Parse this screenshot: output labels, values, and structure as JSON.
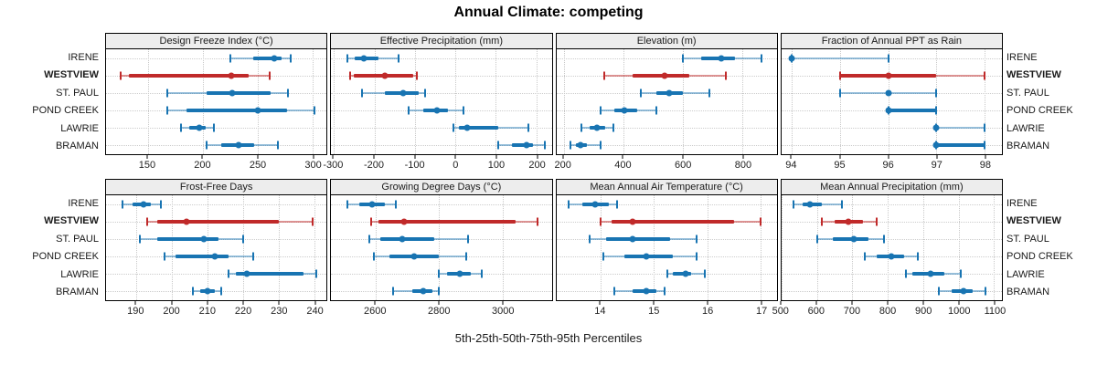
{
  "title": "Annual Climate: competing",
  "caption": "5th-25th-50th-75th-95th Percentiles",
  "sites": [
    "IRENE",
    "WESTVIEW",
    "ST. PAUL",
    "POND CREEK",
    "LAWRIE",
    "BRAMAN"
  ],
  "highlight_site": "WESTVIEW",
  "colors": {
    "normal_solid": "#1874b2",
    "normal_faint": "rgba(24,116,178,0.45)",
    "highlight_solid": "#c02a2a",
    "highlight_faint": "rgba(192,42,42,0.5)",
    "strip_bg": "#ededed",
    "grid": "#c9c9c9"
  },
  "chart_data": [
    {
      "type": "errorbar",
      "panel": "Design Freeze Index (°C)",
      "row": 0,
      "xlim": [
        112,
        313
      ],
      "ticks": [
        150,
        200,
        250,
        300
      ],
      "percentile_labels": [
        "p5",
        "p25",
        "p50",
        "p75",
        "p95"
      ],
      "series": [
        {
          "site": "IRENE",
          "values": [
            225,
            246,
            265,
            272,
            280
          ]
        },
        {
          "site": "WESTVIEW",
          "values": [
            125,
            133,
            226,
            242,
            261
          ]
        },
        {
          "site": "ST. PAUL",
          "values": [
            168,
            204,
            227,
            262,
            278
          ]
        },
        {
          "site": "POND CREEK",
          "values": [
            168,
            185,
            250,
            277,
            302
          ]
        },
        {
          "site": "LAWRIE",
          "values": [
            180,
            188,
            197,
            203,
            210
          ]
        },
        {
          "site": "BRAMAN",
          "values": [
            204,
            217,
            233,
            247,
            269
          ]
        }
      ]
    },
    {
      "type": "errorbar",
      "panel": "Effective Precipitation (mm)",
      "row": 0,
      "xlim": [
        -307,
        238
      ],
      "ticks": [
        -300,
        -200,
        -100,
        0,
        100,
        200
      ],
      "series": [
        {
          "site": "IRENE",
          "values": [
            -267,
            -248,
            -226,
            -189,
            -141
          ]
        },
        {
          "site": "WESTVIEW",
          "values": [
            -260,
            -252,
            -175,
            -105,
            -96
          ]
        },
        {
          "site": "ST. PAUL",
          "values": [
            -230,
            -175,
            -128,
            -90,
            -74
          ]
        },
        {
          "site": "POND CREEK",
          "values": [
            -115,
            -80,
            -45,
            -18,
            20
          ]
        },
        {
          "site": "LAWRIE",
          "values": [
            -5,
            8,
            30,
            105,
            180
          ]
        },
        {
          "site": "BRAMAN",
          "values": [
            105,
            140,
            176,
            192,
            222
          ]
        }
      ]
    },
    {
      "type": "errorbar",
      "panel": "Elevation (m)",
      "row": 0,
      "xlim": [
        175,
        915
      ],
      "ticks": [
        200,
        400,
        600,
        800
      ],
      "series": [
        {
          "site": "IRENE",
          "values": [
            600,
            660,
            730,
            775,
            865
          ]
        },
        {
          "site": "WESTVIEW",
          "values": [
            335,
            430,
            540,
            620,
            745
          ]
        },
        {
          "site": "ST. PAUL",
          "values": [
            460,
            510,
            555,
            600,
            690
          ]
        },
        {
          "site": "POND CREEK",
          "values": [
            325,
            370,
            405,
            445,
            510
          ]
        },
        {
          "site": "LAWRIE",
          "values": [
            258,
            288,
            312,
            338,
            368
          ]
        },
        {
          "site": "BRAMAN",
          "values": [
            223,
            240,
            256,
            278,
            324
          ]
        }
      ]
    },
    {
      "type": "errorbar",
      "panel": "Fraction of Annual PPT as Rain",
      "row": 0,
      "xlim": [
        93.78,
        98.36
      ],
      "ticks": [
        94,
        95,
        96,
        97,
        98
      ],
      "series": [
        {
          "site": "IRENE",
          "values": [
            94,
            94,
            94,
            94,
            96
          ]
        },
        {
          "site": "WESTVIEW",
          "values": [
            95,
            95,
            96,
            97,
            98
          ]
        },
        {
          "site": "ST. PAUL",
          "values": [
            95,
            96,
            96,
            96,
            97
          ]
        },
        {
          "site": "POND CREEK",
          "values": [
            96,
            96,
            96,
            97,
            97
          ]
        },
        {
          "site": "LAWRIE",
          "values": [
            97,
            97,
            97,
            97,
            98
          ]
        },
        {
          "site": "BRAMAN",
          "values": [
            97,
            97,
            97,
            98,
            98
          ]
        }
      ]
    },
    {
      "type": "errorbar",
      "panel": "Frost-Free Days",
      "row": 1,
      "xlim": [
        181.5,
        243.5
      ],
      "ticks": [
        190,
        200,
        210,
        220,
        230,
        240
      ],
      "series": [
        {
          "site": "IRENE",
          "values": [
            186,
            189,
            192,
            194,
            197
          ]
        },
        {
          "site": "WESTVIEW",
          "values": [
            193,
            196,
            204,
            230,
            239.5
          ]
        },
        {
          "site": "ST. PAUL",
          "values": [
            191,
            196,
            209,
            213,
            220
          ]
        },
        {
          "site": "POND CREEK",
          "values": [
            198,
            201,
            212,
            216,
            223
          ]
        },
        {
          "site": "LAWRIE",
          "values": [
            216,
            218,
            221,
            237,
            240.5
          ]
        },
        {
          "site": "BRAMAN",
          "values": [
            206,
            208,
            210,
            212,
            214
          ]
        }
      ]
    },
    {
      "type": "errorbar",
      "panel": "Growing Degree Days (°C)",
      "row": 1,
      "xlim": [
        2460,
        3155
      ],
      "ticks": [
        2600,
        2800,
        3000
      ],
      "series": [
        {
          "site": "IRENE",
          "values": [
            2510,
            2550,
            2590,
            2630,
            2665
          ]
        },
        {
          "site": "WESTVIEW",
          "values": [
            2585,
            2610,
            2690,
            3040,
            3110
          ]
        },
        {
          "site": "ST. PAUL",
          "values": [
            2580,
            2615,
            2685,
            2785,
            2890
          ]
        },
        {
          "site": "POND CREEK",
          "values": [
            2595,
            2645,
            2720,
            2800,
            2885
          ]
        },
        {
          "site": "LAWRIE",
          "values": [
            2800,
            2825,
            2865,
            2900,
            2935
          ]
        },
        {
          "site": "BRAMAN",
          "values": [
            2655,
            2715,
            2750,
            2780,
            2800
          ]
        }
      ]
    },
    {
      "type": "errorbar",
      "panel": "Mean Annual Air Temperature (°C)",
      "row": 1,
      "xlim": [
        13.17,
        17.3
      ],
      "ticks": [
        14,
        15,
        16,
        17
      ],
      "series": [
        {
          "site": "IRENE",
          "values": [
            13.4,
            13.65,
            13.9,
            14.15,
            14.3
          ]
        },
        {
          "site": "WESTVIEW",
          "values": [
            14.0,
            14.2,
            14.6,
            16.5,
            17.0
          ]
        },
        {
          "site": "ST. PAUL",
          "values": [
            13.8,
            14.1,
            14.6,
            15.3,
            15.8
          ]
        },
        {
          "site": "POND CREEK",
          "values": [
            14.05,
            14.45,
            14.85,
            15.35,
            15.8
          ]
        },
        {
          "site": "LAWRIE",
          "values": [
            15.25,
            15.35,
            15.6,
            15.7,
            15.95
          ]
        },
        {
          "site": "BRAMAN",
          "values": [
            14.25,
            14.6,
            14.85,
            15.05,
            15.2
          ]
        }
      ]
    },
    {
      "type": "errorbar",
      "panel": "Mean Annual Precipitation (mm)",
      "row": 1,
      "xlim": [
        500,
        1122
      ],
      "ticks": [
        500,
        600,
        700,
        800,
        900,
        1000,
        1100
      ],
      "series": [
        {
          "site": "IRENE",
          "values": [
            535,
            560,
            580,
            615,
            670
          ]
        },
        {
          "site": "WESTVIEW",
          "values": [
            615,
            650,
            690,
            730,
            770
          ]
        },
        {
          "site": "ST. PAUL",
          "values": [
            600,
            645,
            705,
            745,
            790
          ]
        },
        {
          "site": "POND CREEK",
          "values": [
            735,
            770,
            810,
            845,
            885
          ]
        },
        {
          "site": "LAWRIE",
          "values": [
            850,
            870,
            920,
            960,
            1005
          ]
        },
        {
          "site": "BRAMAN",
          "values": [
            945,
            980,
            1015,
            1040,
            1075
          ]
        }
      ]
    }
  ]
}
